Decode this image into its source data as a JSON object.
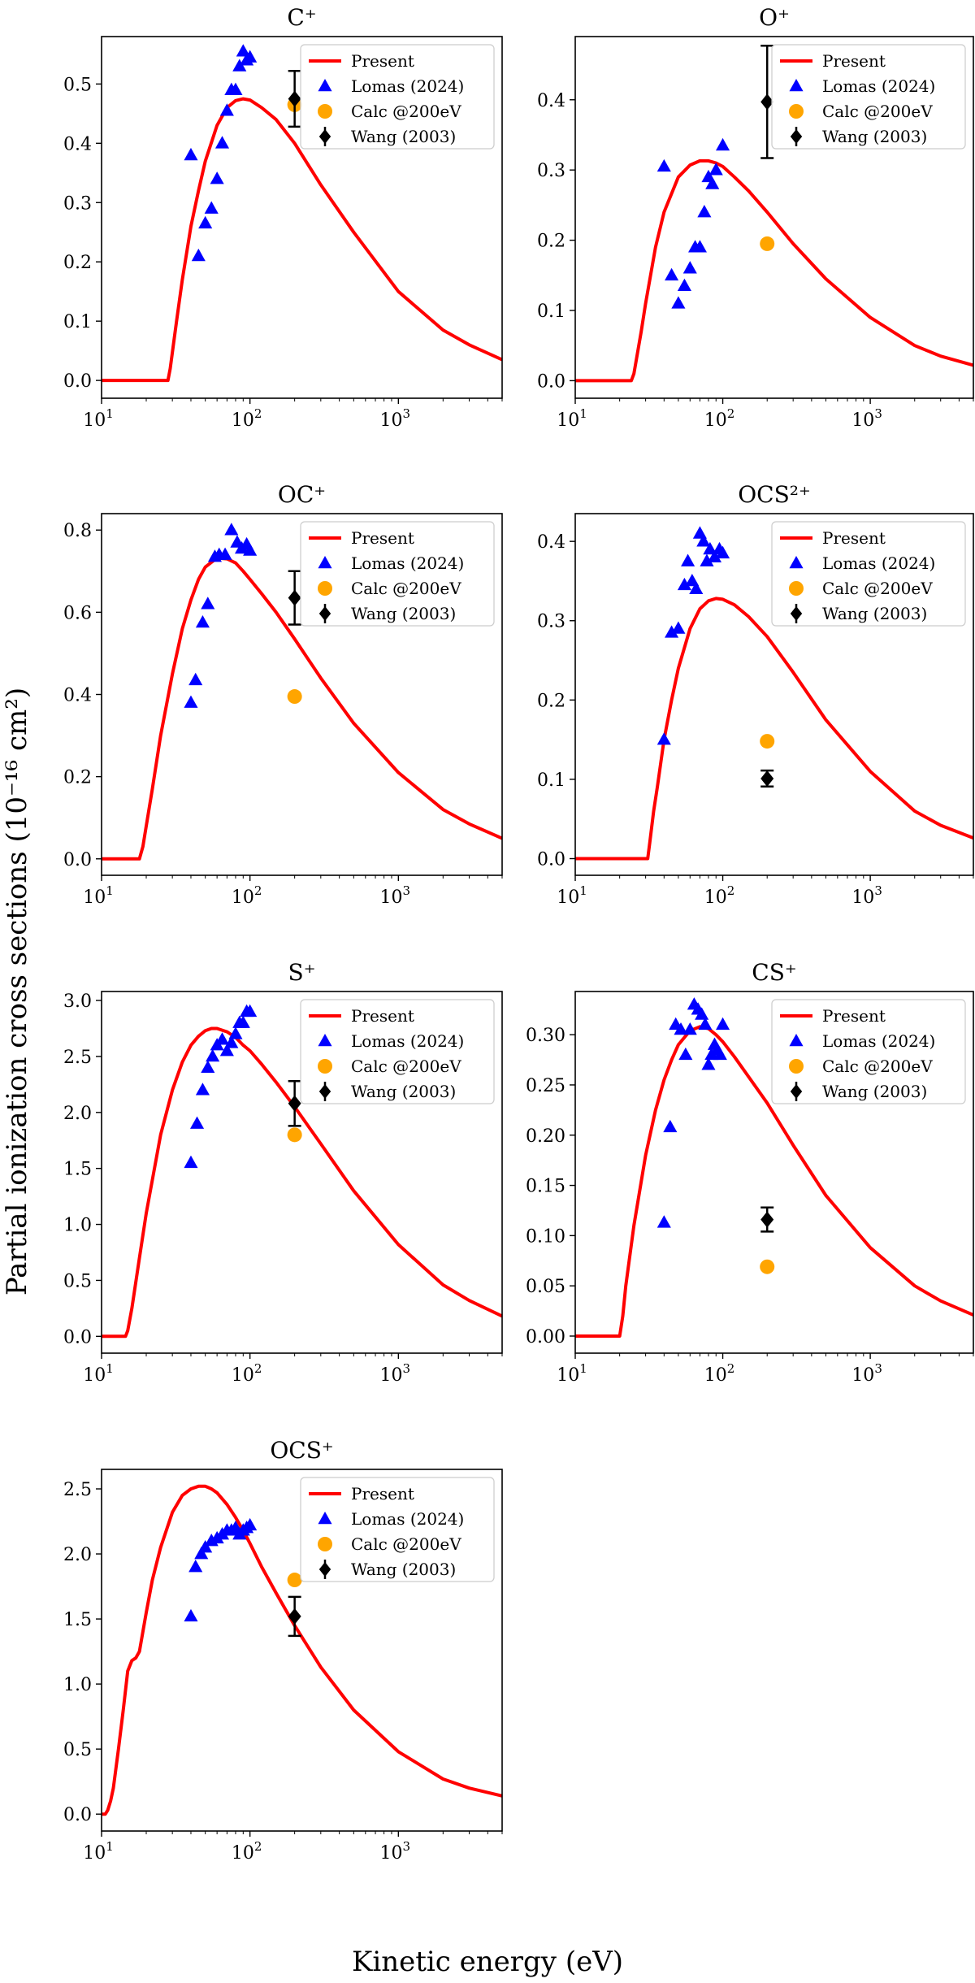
{
  "figure": {
    "ylabel": "Partial ionization cross sections (10⁻¹⁶ cm²)",
    "xlabel": "Kinetic energy (eV)"
  },
  "legend_labels": [
    "Present",
    "Lomas (2024)",
    "Calc @200eV",
    "Wang (2003)"
  ],
  "colors": {
    "present": "#ff0000",
    "lomas": "#0000ff",
    "calc": "#ffa500",
    "wang": "#000000"
  },
  "chart_data": [
    {
      "type": "line",
      "title": "C⁺",
      "xscale": "log",
      "xlim": [
        10,
        5000
      ],
      "ylim": [
        -0.03,
        0.58
      ],
      "yticks": [
        "0.0",
        "0.1",
        "0.2",
        "0.3",
        "0.4",
        "0.5"
      ],
      "ytick_values": [
        0,
        0.1,
        0.2,
        0.3,
        0.4,
        0.5
      ],
      "legend_position": "top-right",
      "series": [
        {
          "name": "Present",
          "kind": "line",
          "x": [
            10,
            28,
            29,
            32,
            35,
            40,
            45,
            50,
            60,
            70,
            80,
            90,
            100,
            120,
            150,
            200,
            300,
            500,
            1000,
            2000,
            3000,
            5000
          ],
          "y": [
            0,
            0,
            0.02,
            0.1,
            0.17,
            0.26,
            0.32,
            0.37,
            0.43,
            0.46,
            0.472,
            0.475,
            0.473,
            0.46,
            0.44,
            0.4,
            0.33,
            0.25,
            0.15,
            0.085,
            0.06,
            0.035
          ]
        },
        {
          "name": "Lomas (2024)",
          "kind": "marker",
          "x": [
            40,
            45,
            50,
            55,
            60,
            65,
            70,
            75,
            80,
            85,
            90,
            95,
            100
          ],
          "y": [
            0.38,
            0.21,
            0.265,
            0.29,
            0.34,
            0.4,
            0.455,
            0.49,
            0.49,
            0.53,
            0.555,
            0.54,
            0.545
          ]
        },
        {
          "name": "Calc @200eV",
          "kind": "marker",
          "x": [
            200
          ],
          "y": [
            0.465
          ]
        },
        {
          "name": "Wang (2003)",
          "kind": "errorbar",
          "x": [
            200
          ],
          "y": [
            0.475
          ],
          "yerr": [
            0.047
          ]
        }
      ]
    },
    {
      "type": "line",
      "title": "O⁺",
      "xscale": "log",
      "xlim": [
        10,
        5000
      ],
      "ylim": [
        -0.025,
        0.49
      ],
      "yticks": [
        "0.0",
        "0.1",
        "0.2",
        "0.3",
        "0.4"
      ],
      "ytick_values": [
        0,
        0.1,
        0.2,
        0.3,
        0.4
      ],
      "legend_position": "top-right",
      "series": [
        {
          "name": "Present",
          "kind": "line",
          "x": [
            10,
            24,
            25,
            28,
            30,
            35,
            40,
            50,
            60,
            70,
            80,
            90,
            100,
            120,
            150,
            200,
            300,
            500,
            1000,
            2000,
            3000,
            5000
          ],
          "y": [
            0,
            0,
            0.01,
            0.07,
            0.11,
            0.19,
            0.24,
            0.29,
            0.307,
            0.313,
            0.313,
            0.31,
            0.305,
            0.29,
            0.27,
            0.24,
            0.195,
            0.145,
            0.09,
            0.05,
            0.035,
            0.022
          ]
        },
        {
          "name": "Lomas (2024)",
          "kind": "marker",
          "x": [
            40,
            45,
            50,
            55,
            60,
            65,
            70,
            75,
            80,
            85,
            90,
            100
          ],
          "y": [
            0.305,
            0.15,
            0.11,
            0.135,
            0.16,
            0.19,
            0.19,
            0.24,
            0.29,
            0.28,
            0.3,
            0.335
          ]
        },
        {
          "name": "Calc @200eV",
          "kind": "marker",
          "x": [
            200
          ],
          "y": [
            0.195
          ]
        },
        {
          "name": "Wang (2003)",
          "kind": "errorbar",
          "x": [
            200
          ],
          "y": [
            0.397
          ],
          "yerr": [
            0.08
          ]
        }
      ]
    },
    {
      "type": "line",
      "title": "OC⁺",
      "xscale": "log",
      "xlim": [
        10,
        5000
      ],
      "ylim": [
        -0.04,
        0.84
      ],
      "yticks": [
        "0.0",
        "0.2",
        "0.4",
        "0.6",
        "0.8"
      ],
      "ytick_values": [
        0,
        0.2,
        0.4,
        0.6,
        0.8
      ],
      "legend_position": "top-right",
      "series": [
        {
          "name": "Present",
          "kind": "line",
          "x": [
            10,
            18,
            19,
            20,
            22,
            25,
            30,
            35,
            40,
            45,
            50,
            60,
            70,
            80,
            90,
            100,
            120,
            150,
            200,
            300,
            500,
            1000,
            2000,
            3000,
            5000
          ],
          "y": [
            0,
            0,
            0.03,
            0.08,
            0.17,
            0.3,
            0.45,
            0.56,
            0.63,
            0.68,
            0.71,
            0.732,
            0.73,
            0.72,
            0.7,
            0.68,
            0.645,
            0.6,
            0.535,
            0.44,
            0.33,
            0.21,
            0.12,
            0.085,
            0.05
          ]
        },
        {
          "name": "Lomas (2024)",
          "kind": "marker",
          "x": [
            40,
            43,
            48,
            52,
            58,
            62,
            68,
            75,
            82,
            88,
            95,
            100
          ],
          "y": [
            0.38,
            0.435,
            0.575,
            0.62,
            0.735,
            0.74,
            0.74,
            0.8,
            0.77,
            0.755,
            0.765,
            0.75
          ]
        },
        {
          "name": "Calc @200eV",
          "kind": "marker",
          "x": [
            200
          ],
          "y": [
            0.395
          ]
        },
        {
          "name": "Wang (2003)",
          "kind": "errorbar",
          "x": [
            200
          ],
          "y": [
            0.635
          ],
          "yerr": [
            0.065
          ]
        }
      ]
    },
    {
      "type": "line",
      "title": "OCS²⁺",
      "xscale": "log",
      "xlim": [
        10,
        5000
      ],
      "ylim": [
        -0.021,
        0.435
      ],
      "yticks": [
        "0.0",
        "0.1",
        "0.2",
        "0.3",
        "0.4"
      ],
      "ytick_values": [
        0,
        0.1,
        0.2,
        0.3,
        0.4
      ],
      "legend_position": "top-right",
      "series": [
        {
          "name": "Present",
          "kind": "line",
          "x": [
            10,
            31,
            32,
            34,
            36,
            40,
            45,
            50,
            60,
            70,
            80,
            90,
            100,
            120,
            150,
            200,
            300,
            500,
            1000,
            2000,
            3000,
            5000
          ],
          "y": [
            0,
            0,
            0.02,
            0.06,
            0.09,
            0.15,
            0.2,
            0.24,
            0.29,
            0.315,
            0.325,
            0.328,
            0.327,
            0.32,
            0.305,
            0.28,
            0.235,
            0.175,
            0.11,
            0.06,
            0.042,
            0.026
          ]
        },
        {
          "name": "Lomas (2024)",
          "kind": "marker",
          "x": [
            40,
            45,
            50,
            55,
            58,
            62,
            66,
            70,
            74,
            78,
            82,
            88,
            95,
            100
          ],
          "y": [
            0.15,
            0.285,
            0.29,
            0.345,
            0.375,
            0.35,
            0.34,
            0.41,
            0.4,
            0.375,
            0.39,
            0.38,
            0.39,
            0.385
          ]
        },
        {
          "name": "Calc @200eV",
          "kind": "marker",
          "x": [
            200
          ],
          "y": [
            0.148
          ]
        },
        {
          "name": "Wang (2003)",
          "kind": "errorbar",
          "x": [
            200
          ],
          "y": [
            0.101
          ],
          "yerr": [
            0.01
          ]
        }
      ]
    },
    {
      "type": "line",
      "title": "S⁺",
      "xscale": "log",
      "xlim": [
        10,
        5000
      ],
      "ylim": [
        -0.15,
        3.08
      ],
      "yticks": [
        "0.0",
        "0.5",
        "1.0",
        "1.5",
        "2.0",
        "2.5",
        "3.0"
      ],
      "ytick_values": [
        0,
        0.5,
        1,
        1.5,
        2,
        2.5,
        3
      ],
      "legend_position": "top-right",
      "series": [
        {
          "name": "Present",
          "kind": "line",
          "x": [
            10,
            14.5,
            15,
            16,
            18,
            20,
            25,
            30,
            35,
            40,
            45,
            50,
            55,
            60,
            70,
            80,
            90,
            100,
            120,
            150,
            200,
            300,
            500,
            1000,
            2000,
            3000,
            5000
          ],
          "y": [
            0,
            0,
            0.05,
            0.25,
            0.7,
            1.1,
            1.8,
            2.2,
            2.45,
            2.6,
            2.68,
            2.73,
            2.75,
            2.75,
            2.72,
            2.67,
            2.6,
            2.55,
            2.43,
            2.27,
            2.05,
            1.72,
            1.3,
            0.82,
            0.46,
            0.32,
            0.18
          ]
        },
        {
          "name": "Lomas (2024)",
          "kind": "marker",
          "x": [
            40,
            44,
            48,
            52,
            56,
            60,
            65,
            70,
            75,
            80,
            85,
            90,
            95,
            100
          ],
          "y": [
            1.55,
            1.9,
            2.2,
            2.4,
            2.5,
            2.6,
            2.65,
            2.55,
            2.62,
            2.7,
            2.8,
            2.8,
            2.9,
            2.9
          ]
        },
        {
          "name": "Calc @200eV",
          "kind": "marker",
          "x": [
            200
          ],
          "y": [
            1.8
          ]
        },
        {
          "name": "Wang (2003)",
          "kind": "errorbar",
          "x": [
            200
          ],
          "y": [
            2.08
          ],
          "yerr": [
            0.2
          ]
        }
      ]
    },
    {
      "type": "line",
      "title": "CS⁺",
      "xscale": "log",
      "xlim": [
        10,
        5000
      ],
      "ylim": [
        -0.017,
        0.343
      ],
      "yticks": [
        "0.00",
        "0.05",
        "0.10",
        "0.15",
        "0.20",
        "0.25",
        "0.30"
      ],
      "ytick_values": [
        0,
        0.05,
        0.1,
        0.15,
        0.2,
        0.25,
        0.3
      ],
      "legend_position": "top-right",
      "series": [
        {
          "name": "Present",
          "kind": "line",
          "x": [
            10,
            20,
            21,
            22,
            25,
            30,
            35,
            40,
            45,
            50,
            60,
            70,
            80,
            90,
            100,
            120,
            150,
            200,
            300,
            500,
            1000,
            2000,
            3000,
            5000
          ],
          "y": [
            0,
            0,
            0.02,
            0.05,
            0.11,
            0.18,
            0.225,
            0.255,
            0.275,
            0.29,
            0.304,
            0.308,
            0.306,
            0.3,
            0.293,
            0.278,
            0.258,
            0.232,
            0.19,
            0.14,
            0.088,
            0.05,
            0.035,
            0.021
          ]
        },
        {
          "name": "Lomas (2024)",
          "kind": "marker",
          "x": [
            40,
            44,
            48,
            52,
            56,
            60,
            64,
            68,
            72,
            76,
            80,
            84,
            88,
            92,
            96,
            100
          ],
          "y": [
            0.113,
            0.208,
            0.31,
            0.305,
            0.28,
            0.305,
            0.33,
            0.325,
            0.32,
            0.31,
            0.27,
            0.28,
            0.29,
            0.285,
            0.28,
            0.31
          ]
        },
        {
          "name": "Calc @200eV",
          "kind": "marker",
          "x": [
            200
          ],
          "y": [
            0.069
          ]
        },
        {
          "name": "Wang (2003)",
          "kind": "errorbar",
          "x": [
            200
          ],
          "y": [
            0.116
          ],
          "yerr": [
            0.012
          ]
        }
      ]
    },
    {
      "type": "line",
      "title": "OCS⁺",
      "xscale": "log",
      "xlim": [
        10,
        5000
      ],
      "ylim": [
        -0.13,
        2.65
      ],
      "yticks": [
        "0.0",
        "0.5",
        "1.0",
        "1.5",
        "2.0",
        "2.5"
      ],
      "ytick_values": [
        0,
        0.5,
        1,
        1.5,
        2,
        2.5
      ],
      "legend_position": "top-right",
      "series": [
        {
          "name": "Present",
          "kind": "line",
          "x": [
            10,
            10.6,
            11,
            11.5,
            12,
            13,
            14,
            15,
            16,
            17,
            18,
            20,
            22,
            25,
            30,
            35,
            40,
            45,
            50,
            55,
            60,
            70,
            80,
            90,
            100,
            120,
            150,
            200,
            300,
            500,
            1000,
            2000,
            3000,
            5000
          ],
          "y": [
            0,
            0,
            0.03,
            0.1,
            0.2,
            0.5,
            0.8,
            1.1,
            1.18,
            1.2,
            1.25,
            1.55,
            1.8,
            2.05,
            2.32,
            2.45,
            2.5,
            2.52,
            2.52,
            2.5,
            2.47,
            2.38,
            2.28,
            2.18,
            2.08,
            1.9,
            1.7,
            1.45,
            1.13,
            0.8,
            0.48,
            0.27,
            0.2,
            0.14
          ]
        },
        {
          "name": "Lomas (2024)",
          "kind": "marker",
          "x": [
            40,
            43,
            47,
            50,
            55,
            60,
            65,
            70,
            75,
            80,
            85,
            90,
            95,
            100
          ],
          "y": [
            1.52,
            1.9,
            2.0,
            2.05,
            2.1,
            2.12,
            2.15,
            2.18,
            2.18,
            2.2,
            2.15,
            2.18,
            2.2,
            2.22
          ]
        },
        {
          "name": "Calc @200eV",
          "kind": "marker",
          "x": [
            200
          ],
          "y": [
            1.8
          ]
        },
        {
          "name": "Wang (2003)",
          "kind": "errorbar",
          "x": [
            200
          ],
          "y": [
            1.52
          ],
          "yerr": [
            0.15
          ]
        }
      ]
    }
  ]
}
